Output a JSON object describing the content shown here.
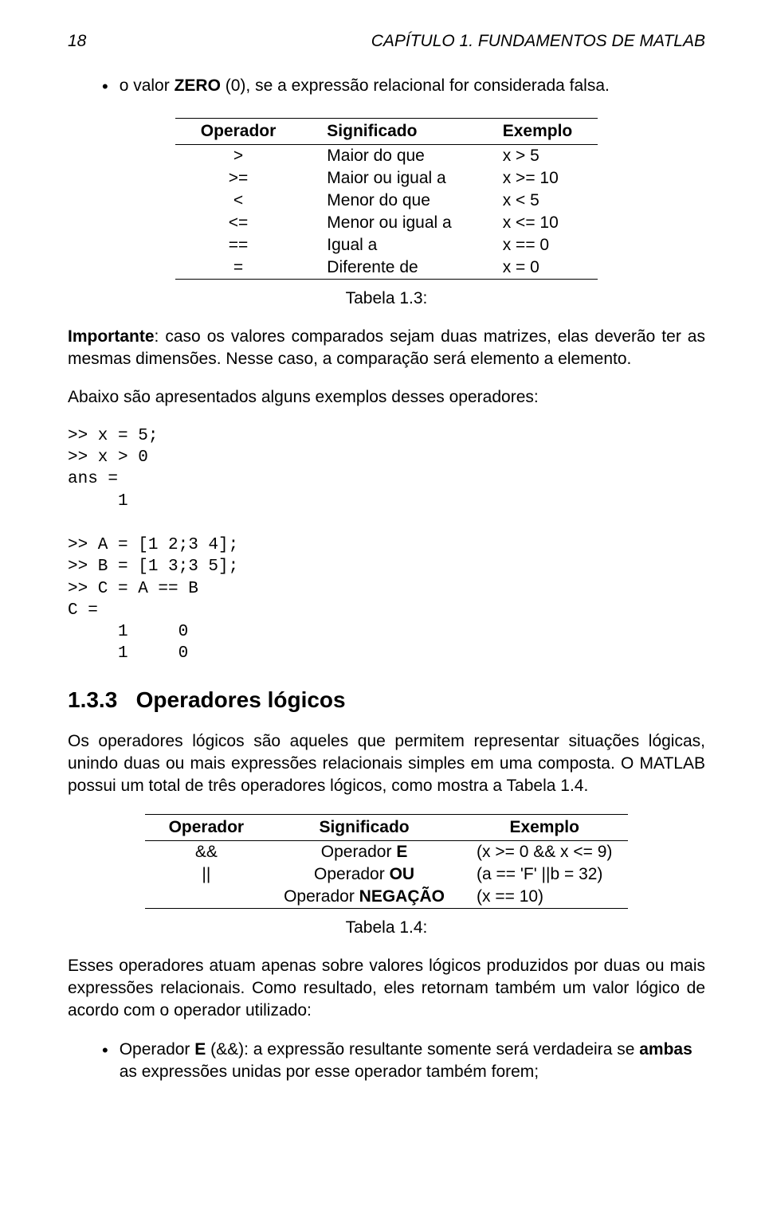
{
  "header": {
    "page_number": "18",
    "chapter_title": "CAPÍTULO 1. FUNDAMENTOS DE MATLAB"
  },
  "bullet1": {
    "text_prefix": "o valor ",
    "text_bold": "ZERO",
    "text_suffix": " (0), se a expressão relacional for considerada falsa."
  },
  "table1": {
    "headers": [
      "Operador",
      "Significado",
      "Exemplo"
    ],
    "rows": [
      [
        ">",
        "Maior do que",
        "x > 5"
      ],
      [
        ">=",
        "Maior ou igual a",
        "x >= 10"
      ],
      [
        "<",
        "Menor do que",
        "x < 5"
      ],
      [
        "<=",
        "Menor ou igual a",
        "x <= 10"
      ],
      [
        "==",
        "Igual a",
        "x == 0"
      ],
      [
        "=",
        "Diferente de",
        "x  = 0"
      ]
    ],
    "caption": "Tabela 1.3:"
  },
  "para1": {
    "bold": "Importante",
    "rest": ": caso os valores comparados sejam duas matrizes, elas deverão ter as mesmas dimensões. Nesse caso, a comparação será elemento a elemento."
  },
  "para2": "Abaixo são apresentados alguns exemplos desses operadores:",
  "code1": ">> x = 5;\n>> x > 0\nans =\n     1",
  "code2": ">> A = [1 2;3 4];\n>> B = [1 3;3 5];\n>> C = A == B\nC =\n     1     0\n     1     0",
  "section": {
    "number": "1.3.3",
    "title": "Operadores lógicos"
  },
  "para3": "Os operadores lógicos são aqueles que permitem representar situações lógicas, unindo duas ou mais expressões relacionais simples em uma composta. O MATLAB possui um total de três operadores lógicos, como mostra a Tabela 1.4.",
  "table2": {
    "headers": [
      "Operador",
      "Significado",
      "Exemplo"
    ],
    "rows": [
      {
        "op": "&&",
        "sig_pre": "Operador ",
        "sig_bold": "E",
        "ex": "(x >= 0 && x <= 9)"
      },
      {
        "op": "||",
        "sig_pre": "Operador ",
        "sig_bold": "OU",
        "ex": "(a == 'F' ||b  = 32)"
      },
      {
        "op": "",
        "sig_pre": "Operador ",
        "sig_bold": "NEGAÇÃO",
        "ex": "(x == 10)"
      }
    ],
    "caption": "Tabela 1.4:"
  },
  "para4": "Esses operadores atuam apenas sobre valores lógicos produzidos por duas ou mais expressões relacionais. Como resultado, eles retornam também um valor lógico de acordo com o operador utilizado:",
  "bullet2": {
    "prefix": "Operador ",
    "bold1": "E",
    "mid": " (&&): a expressão resultante somente será verdadeira se ",
    "bold2": "ambas",
    "suffix": " as expressões unidas por esse operador também forem;"
  }
}
